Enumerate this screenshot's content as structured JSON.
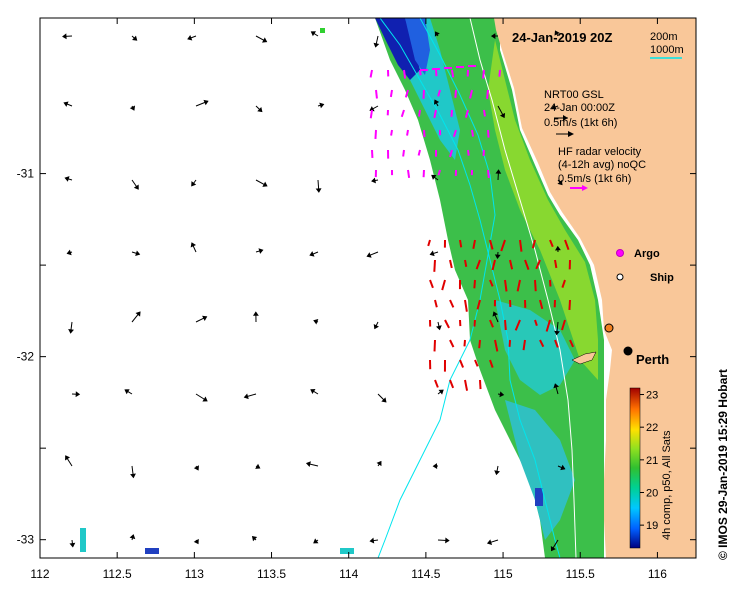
{
  "map": {
    "date_title": "24-Jan-2019 20Z",
    "isobath_labels": [
      "200m",
      "1000m"
    ],
    "model_legend": {
      "line1": "NRT00 GSL",
      "line2": "24-Jan 00:00Z",
      "line3": "0.5m/s (1kt 6h)"
    },
    "hf_legend": {
      "line1": "HF radar velocity",
      "line2": "(4-12h avg) noQC",
      "line3": "0.5m/s (1kt 6h)"
    },
    "markers": {
      "argo": "Argo",
      "ship": "Ship"
    },
    "city": "Perth",
    "colorbar_title": "4h comp, p50, All Sats",
    "colorbar_ticks": [
      "19",
      "20",
      "21",
      "22",
      "23"
    ],
    "credit": "© IMOS 29-Jan-2019 15:29 Hobart",
    "x_ticks": [
      "112",
      "112.5",
      "113",
      "113.5",
      "114",
      "114.5",
      "115",
      "115.5",
      "116"
    ],
    "y_ticks": [
      "-31",
      "-31.5",
      "-32",
      "-32.5",
      "-33"
    ],
    "y_tick_labels": [
      "-31",
      "-32",
      "-33"
    ],
    "colors": {
      "land": "#F9C799",
      "model_arrow": "#000000",
      "hf_arrow_north": "#FF00FF",
      "hf_arrow_south": "#E00000",
      "isobath": "#00E5EE",
      "perth_marker": "#000000",
      "argo_marker": "#FF00FF"
    }
  }
}
